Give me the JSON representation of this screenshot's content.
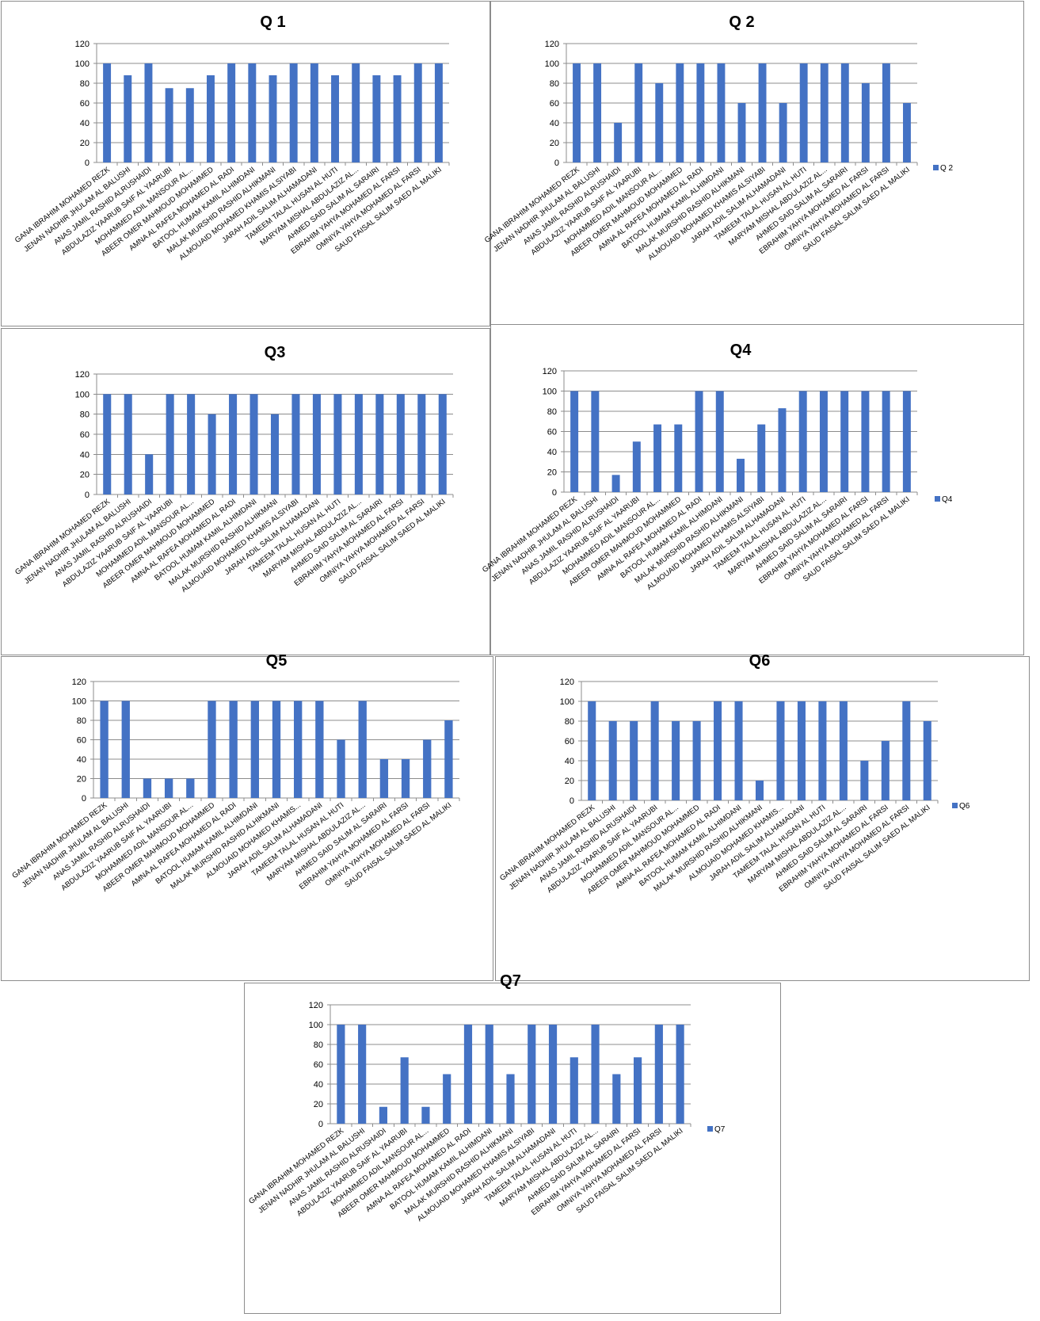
{
  "accent_color": "#4472C4",
  "chart_data": [
    {
      "type": "bar",
      "title": "Q 1",
      "legend": "",
      "ylim": [
        0,
        120
      ],
      "yticks": [
        0,
        20,
        40,
        60,
        80,
        100,
        120
      ],
      "categories": [
        "GANA IBRAHIM MOHAMED REZK",
        "JENAN NADHIR JHULAM AL BALUSHI",
        "ANAS JAMIL RASHID ALRUSHAIDI",
        "ABDULAZIZ YAARUB SAIF AL YAARUBI",
        "MOHAMMED ADIL MANSOUR AL...",
        "ABEER OMER MAHMOUD MOHAMMED",
        "AMNA AL RAFEA MOHAMED AL RADI",
        "BATOOL HUMAM KAMIL ALHIMDANI",
        "MALAK MURSHID RASHID ALHIKMANI",
        "ALMOUAID MOHAMED KHAMIS ALSIYABI",
        "JARAH ADIL SALIM ALHAMADANI",
        "TAMEEM TALAL HUSAN AL HUTI",
        "MARYAM MISHAL ABDULAZIZ AL...",
        "AHMED SAID SALIM AL SARAIRI",
        "EBRAHIM YAHYA MOHAMED AL FARSI",
        "OMNIYA YAHYA MOHAMED AL FARSI",
        "SAUD FAISAL SALIM SAED AL MALIKI"
      ],
      "series": [
        {
          "name": "",
          "values": [
            100,
            88,
            100,
            75,
            75,
            88,
            100,
            100,
            88,
            100,
            100,
            88,
            100,
            88,
            88,
            100,
            100
          ]
        }
      ]
    },
    {
      "type": "bar",
      "title": "Q 2",
      "legend": "Q 2",
      "ylim": [
        0,
        120
      ],
      "yticks": [
        0,
        20,
        40,
        60,
        80,
        100,
        120
      ],
      "categories": [
        "GANA IBRAHIM MOHAMED REZK",
        "JENAN NADHIR JHULAM AL BALUSHI",
        "ANAS JAMIL RASHID ALRUSHAIDI",
        "ABDULAZIZ YAARUB SAIF AL YAARUBI",
        "MOHAMMED ADIL MANSOUR AL...",
        "ABEER OMER MAHMOUD MOHAMMED",
        "AMNA AL RAFEA MOHAMED AL RADI",
        "BATOOL HUMAM KAMIL ALHIMDANI",
        "MALAK MURSHID RASHID ALHIKMANI",
        "ALMOUAID MOHAMED KHAMIS ALSIYABI",
        "JARAH ADIL SALIM ALHAMADANI",
        "TAMEEM TALAL HUSAN AL HUTI",
        "MARYAM MISHAL ABDULAZIZ AL...",
        "AHMED SAID SALIM AL SARAIRI",
        "EBRAHIM YAHYA MOHAMED AL FARSI",
        "OMNIYA YAHYA MOHAMED AL FARSI",
        "SAUD FAISAL SALIM SAED AL MALIKI"
      ],
      "series": [
        {
          "name": "Q 2",
          "values": [
            100,
            100,
            40,
            100,
            80,
            100,
            100,
            100,
            60,
            100,
            60,
            100,
            100,
            100,
            80,
            100,
            60
          ]
        }
      ]
    },
    {
      "type": "bar",
      "title": "Q3",
      "legend": "",
      "ylim": [
        0,
        120
      ],
      "yticks": [
        0,
        20,
        40,
        60,
        80,
        100,
        120
      ],
      "categories": [
        "GANA IBRAHIM MOHAMED REZK",
        "JENAN NADHIR JHULAM AL BALUSHI",
        "ANAS JAMIL RASHID ALRUSHAIDI",
        "ABDULAZIZ YAARUB SAIF AL YAARUBI",
        "MOHAMMED ADIL MANSOUR AL...",
        "ABEER OMER MAHMOUD MOHAMMED",
        "AMNA AL RAFEA MOHAMED AL RADI",
        "BATOOL HUMAM KAMIL ALHIMDANI",
        "MALAK MURSHID RASHID ALHIKMANI",
        "ALMOUAID MOHAMED KHAMIS ALSIYABI",
        "JARAH ADIL SALIM ALHAMADANI",
        "TAMEEM TALAL HUSAN AL HUTI",
        "MARYAM MISHAL ABDULAZIZ AL...",
        "AHMED SAID SALIM AL SARAIRI",
        "EBRAHIM YAHYA MOHAMED AL FARSI",
        "OMNIYA YAHYA MOHAMED AL FARSI",
        "SAUD FAISAL SALIM SAED AL MALIKI"
      ],
      "series": [
        {
          "name": "",
          "values": [
            100,
            100,
            40,
            100,
            100,
            80,
            100,
            100,
            80,
            100,
            100,
            100,
            100,
            100,
            100,
            100,
            100
          ]
        }
      ]
    },
    {
      "type": "bar",
      "title": "Q4",
      "legend": "Q4",
      "ylim": [
        0,
        120
      ],
      "yticks": [
        0,
        20,
        40,
        60,
        80,
        100,
        120
      ],
      "categories": [
        "GANA IBRAHIM MOHAMED REZK",
        "JENAN NADHIR JHULAM AL BALUSHI",
        "ANAS JAMIL RASHID ALRUSHAIDI",
        "ABDULAZIZ YAARUB SAIF AL YAARUBI",
        "MOHAMMED ADIL MANSOUR AL...",
        "ABEER OMER MAHMOUD MOHAMMED",
        "AMNA AL RAFEA MOHAMED AL RADI",
        "BATOOL HUMAM KAMIL ALHIMDANI",
        "MALAK MURSHID RASHID ALHIKMANI",
        "ALMOUAID MOHAMED KHAMIS ALSIYABI",
        "JARAH ADIL SALIM ALHAMADANI",
        "TAMEEM TALAL HUSAN AL HUTI",
        "MARYAM MISHAL ABDULAZIZ AL...",
        "AHMED SAID SALIM AL SARAIRI",
        "EBRAHIM YAHYA MOHAMED AL FARSI",
        "OMNIYA YAHYA MOHAMED AL FARSI",
        "SAUD FAISAL SALIM SAED AL MALIKI"
      ],
      "series": [
        {
          "name": "Q4",
          "values": [
            100,
            100,
            17,
            50,
            67,
            67,
            100,
            100,
            33,
            67,
            83,
            100,
            100,
            100,
            100,
            100,
            100
          ]
        }
      ]
    },
    {
      "type": "bar",
      "title": "Q5",
      "legend": "",
      "ylim": [
        0,
        120
      ],
      "yticks": [
        0,
        20,
        40,
        60,
        80,
        100,
        120
      ],
      "categories": [
        "GANA IBRAHIM MOHAMED REZK",
        "JENAN NADHIR JHULAM AL BALUSHI",
        "ANAS JAMIL RASHID ALRUSHAIDI",
        "ABDULAZIZ YAARUB SAIF AL YAARUBI",
        "MOHAMMED ADIL MANSOUR AL...",
        "ABEER OMER MAHMOUD MOHAMMED",
        "AMNA AL RAFEA MOHAMED AL RADI",
        "BATOOL HUMAM KAMIL ALHIMDANI",
        "MALAK MURSHID RASHID ALHIKMANI",
        "ALMOUAID MOHAMED KHAMIS...",
        "JARAH ADIL SALIM ALHAMADANI",
        "TAMEEM TALAL HUSAN AL HUTI",
        "MARYAM MISHAL ABDULAZIZ AL...",
        "AHMED SAID SALIM AL SARAIRI",
        "EBRAHIM YAHYA MOHAMED AL FARSI",
        "OMNIYA YAHYA MOHAMED AL FARSI",
        "SAUD FAISAL SALIM SAED AL MALIKI"
      ],
      "series": [
        {
          "name": "",
          "values": [
            100,
            100,
            20,
            20,
            20,
            100,
            100,
            100,
            100,
            100,
            100,
            60,
            100,
            40,
            40,
            60,
            80
          ]
        }
      ]
    },
    {
      "type": "bar",
      "title": "Q6",
      "legend": "Q6",
      "ylim": [
        0,
        120
      ],
      "yticks": [
        0,
        20,
        40,
        60,
        80,
        100,
        120
      ],
      "categories": [
        "GANA IBRAHIM MOHAMED REZK",
        "JENAN NADHIR JHULAM AL BALUSHI",
        "ANAS JAMIL RASHID ALRUSHAIDI",
        "ABDULAZIZ YAARUB SAIF AL YAARUBI",
        "MOHAMMED ADIL MANSOUR AL...",
        "ABEER OMER MAHMOUD MOHAMMED",
        "AMNA AL RAFEA MOHAMED AL RADI",
        "BATOOL HUMAM KAMIL ALHIMDANI",
        "MALAK MURSHID RASHID ALHIKMANI",
        "ALMOUAID MOHAMED KHAMIS...",
        "JARAH ADIL SALIM ALHAMADANI",
        "TAMEEM TALAL HUSAN AL HUTI",
        "MARYAM MISHAL ABDULAZIZ AL...",
        "AHMED SAID SALIM AL SARAIRI",
        "EBRAHIM YAHYA MOHAMED AL FARSI",
        "OMNIYA YAHYA MOHAMED AL FARSI",
        "SAUD FAISAL SALIM SAED AL MALIKI"
      ],
      "series": [
        {
          "name": "Q6",
          "values": [
            100,
            80,
            80,
            100,
            80,
            80,
            100,
            100,
            20,
            100,
            100,
            100,
            100,
            40,
            60,
            100,
            80
          ]
        }
      ]
    },
    {
      "type": "bar",
      "title": "Q7",
      "legend": "Q7",
      "ylim": [
        0,
        120
      ],
      "yticks": [
        0,
        20,
        40,
        60,
        80,
        100,
        120
      ],
      "categories": [
        "GANA IBRAHIM MOHAMED REZK",
        "JENAN NADHIR JHULAM AL BALUSHI",
        "ANAS JAMIL RASHID ALRUSHAIDI",
        "ABDULAZIZ YAARUB SAIF AL YAARUBI",
        "MOHAMMED ADIL MANSOUR AL...",
        "ABEER OMER MAHMOUD MOHAMMED",
        "AMNA AL RAFEA MOHAMED AL RADI",
        "BATOOL HUMAM KAMIL ALHIMDANI",
        "MALAK MURSHID RASHID ALHIKMANI",
        "ALMOUAID MOHAMED KHAMIS ALSIYABI",
        "JARAH ADIL SALIM ALHAMADANI",
        "TAMEEM TALAL HUSAN AL HUTI",
        "MARYAM MISHAL ABDULAZIZ AL...",
        "AHMED SAID SALIM AL SARAIRI",
        "EBRAHIM YAHYA MOHAMED AL FARSI",
        "OMNIYA YAHYA MOHAMED AL FARSI",
        "SAUD FAISAL SALIM SAED AL MALIKI"
      ],
      "series": [
        {
          "name": "Q7",
          "values": [
            100,
            100,
            17,
            67,
            17,
            50,
            100,
            100,
            50,
            100,
            100,
            67,
            100,
            50,
            67,
            100,
            100
          ]
        }
      ]
    }
  ]
}
